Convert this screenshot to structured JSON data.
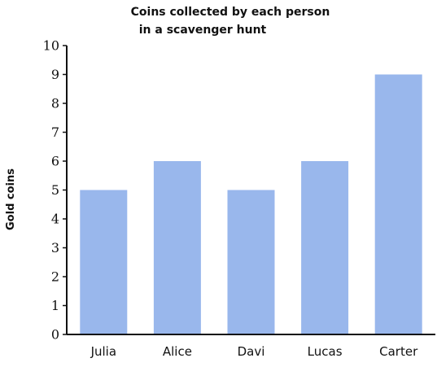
{
  "chart_data": {
    "type": "bar",
    "title_lines": [
      "Coins collected by each person",
      "in a scavenger hunt"
    ],
    "xlabel": "",
    "ylabel": "Gold coins",
    "categories": [
      "Julia",
      "Alice",
      "Davi",
      "Lucas",
      "Carter"
    ],
    "values": [
      5,
      6,
      5,
      6,
      9
    ],
    "ylim": [
      0,
      10
    ],
    "yticks": [
      "0",
      "1",
      "2",
      "3",
      "4",
      "5",
      "6",
      "7",
      "8",
      "9",
      "10"
    ],
    "grid": false,
    "bar_color": "#99b7ec",
    "axis_color": "#111111"
  }
}
